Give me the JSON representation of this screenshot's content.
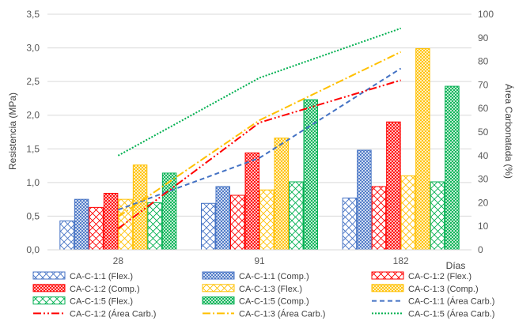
{
  "chart_data": {
    "type": "bar",
    "categories": [
      "28",
      "91",
      "182"
    ],
    "xlabel": "Días",
    "ylabel": "Resistencia (MPa)",
    "ylabel_right": "Área Carbonatada (%)",
    "ylim": [
      0,
      3.5
    ],
    "ylim_right": [
      0,
      100
    ],
    "y_ticks": [
      "0,0",
      "0,5",
      "1,0",
      "1,5",
      "2,0",
      "2,5",
      "3,0",
      "3,5"
    ],
    "y_right_ticks": [
      "0",
      "10",
      "20",
      "30",
      "40",
      "50",
      "60",
      "70",
      "80",
      "90",
      "100"
    ],
    "grid": true,
    "legend_position": "bottom",
    "bar_series": [
      {
        "name": "CA-C-1:1 (Flex.)",
        "values": [
          0.43,
          0.69,
          0.77
        ],
        "color": "#4472C4",
        "pattern": "wide"
      },
      {
        "name": "CA-C-1:1 (Comp.)",
        "values": [
          0.75,
          0.94,
          1.48
        ],
        "color": "#4472C4",
        "pattern": "dense"
      },
      {
        "name": "CA-C-1:2 (Flex.)",
        "values": [
          0.63,
          0.81,
          0.94
        ],
        "color": "#FF0000",
        "pattern": "wide"
      },
      {
        "name": "CA-C-1:2 (Comp.)",
        "values": [
          0.84,
          1.44,
          1.9
        ],
        "color": "#FF0000",
        "pattern": "dense"
      },
      {
        "name": "CA-C-1:3 (Flex.)",
        "values": [
          0.75,
          0.89,
          1.1
        ],
        "color": "#FFC000",
        "pattern": "wide"
      },
      {
        "name": "CA-C-1:3 (Comp.)",
        "values": [
          1.26,
          1.66,
          2.99
        ],
        "color": "#FFC000",
        "pattern": "dense"
      },
      {
        "name": "CA-C-1:5 (Flex.)",
        "values": [
          0.7,
          1.01,
          1.01
        ],
        "color": "#00B050",
        "pattern": "wide"
      },
      {
        "name": "CA-C-1:5 (Comp.)",
        "values": [
          1.14,
          2.23,
          2.43
        ],
        "color": "#00B050",
        "pattern": "dense"
      }
    ],
    "line_series": [
      {
        "name": "CA-C-1:1 (Área Carb.)",
        "values": [
          17,
          39,
          77
        ],
        "color": "#4472C4",
        "dash": "6,4"
      },
      {
        "name": "CA-C-1:2 (Área Carb.)",
        "values": [
          9,
          54,
          72
        ],
        "color": "#FF0000",
        "dash": "10,3,2,3,2,3"
      },
      {
        "name": "CA-C-1:3 (Área Carb.)",
        "values": [
          14,
          55,
          84
        ],
        "color": "#FFC000",
        "dash": "10,3,2,3"
      },
      {
        "name": "CA-C-1:5 (Área Carb.)",
        "values": [
          40,
          73,
          94
        ],
        "color": "#00B050",
        "dash": "2,2"
      }
    ]
  }
}
